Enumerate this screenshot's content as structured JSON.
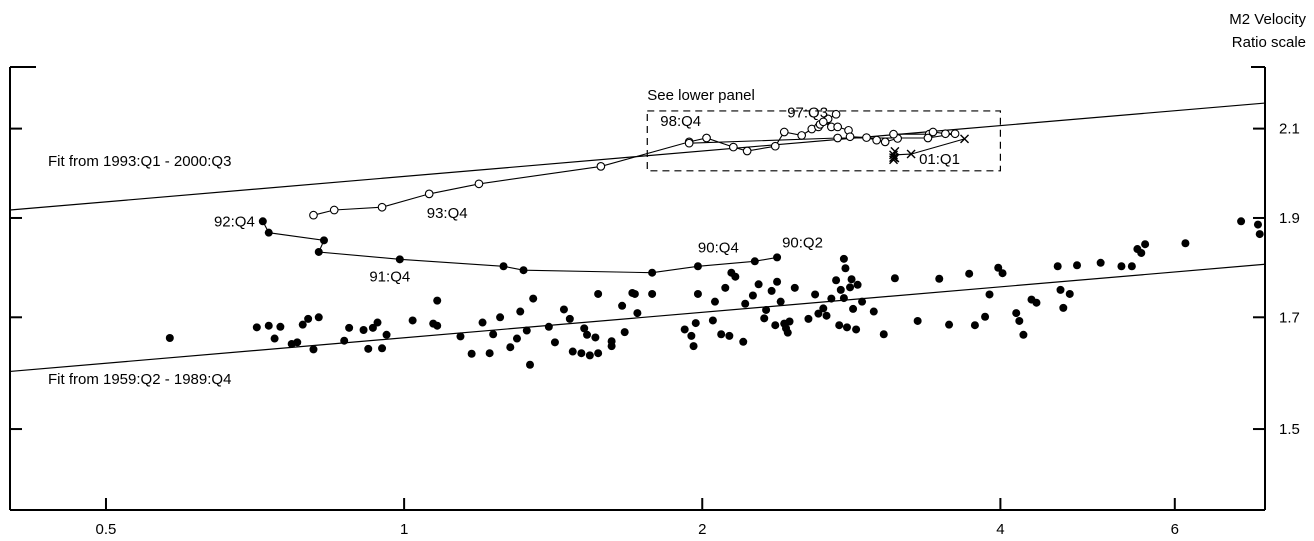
{
  "chart_data": {
    "type": "scatter",
    "title": "",
    "xlabel": "",
    "ylabel": "M2 Velocity",
    "ylabel_sub": "Ratio scale",
    "x_scale": "log",
    "y_scale": "log",
    "xlim": [
      0.4,
      7.4
    ],
    "ylim": [
      1.37,
      2.25
    ],
    "x_ticks": [
      0.5,
      1,
      2,
      4,
      6
    ],
    "x_tick_labels": [
      "0.5",
      "1",
      "2",
      "4",
      "6"
    ],
    "y_ticks": [
      1.5,
      1.7,
      1.9,
      2.1
    ],
    "y_tick_labels": [
      "1.5",
      "1.7",
      "1.9",
      "2.1"
    ],
    "grid": false,
    "legend": "none",
    "series": [
      {
        "marker": "filled-circle",
        "points": [
          [
            0.58,
            1.661
          ],
          [
            0.71,
            1.681
          ],
          [
            0.73,
            1.684
          ],
          [
            0.74,
            1.66
          ],
          [
            0.75,
            1.682
          ],
          [
            0.77,
            1.65
          ],
          [
            0.78,
            1.653
          ],
          [
            0.79,
            1.686
          ],
          [
            0.8,
            1.697
          ],
          [
            0.81,
            1.64
          ],
          [
            0.82,
            1.7
          ],
          [
            0.87,
            1.656
          ],
          [
            0.88,
            1.68
          ],
          [
            0.91,
            1.676
          ],
          [
            0.92,
            1.641
          ],
          [
            0.93,
            1.68
          ],
          [
            0.94,
            1.69
          ],
          [
            0.95,
            1.642
          ],
          [
            0.96,
            1.667
          ],
          [
            1.02,
            1.694
          ],
          [
            1.07,
            1.688
          ],
          [
            1.08,
            1.684
          ],
          [
            1.08,
            1.732
          ],
          [
            1.14,
            1.664
          ],
          [
            1.17,
            1.632
          ],
          [
            1.2,
            1.69
          ],
          [
            1.22,
            1.633
          ],
          [
            1.23,
            1.668
          ],
          [
            1.25,
            1.7
          ],
          [
            1.28,
            1.644
          ],
          [
            1.3,
            1.66
          ],
          [
            1.31,
            1.711
          ],
          [
            1.33,
            1.675
          ],
          [
            1.34,
            1.612
          ],
          [
            1.35,
            1.736
          ],
          [
            1.4,
            1.682
          ],
          [
            1.42,
            1.653
          ],
          [
            1.45,
            1.715
          ],
          [
            1.47,
            1.697
          ],
          [
            1.48,
            1.636
          ],
          [
            1.51,
            1.633
          ],
          [
            1.52,
            1.679
          ],
          [
            1.53,
            1.667
          ],
          [
            1.54,
            1.629
          ],
          [
            1.56,
            1.662
          ],
          [
            1.57,
            1.633
          ],
          [
            1.57,
            1.745
          ],
          [
            1.62,
            1.646
          ],
          [
            1.62,
            1.655
          ],
          [
            1.66,
            1.722
          ],
          [
            1.67,
            1.672
          ],
          [
            1.7,
            1.747
          ],
          [
            1.71,
            1.745
          ],
          [
            1.72,
            1.708
          ],
          [
            1.78,
            1.745
          ],
          [
            1.92,
            1.677
          ],
          [
            1.95,
            1.665
          ],
          [
            1.96,
            1.646
          ],
          [
            1.97,
            1.689
          ],
          [
            1.98,
            1.745
          ],
          [
            2.05,
            1.694
          ],
          [
            2.06,
            1.73
          ],
          [
            2.09,
            1.668
          ],
          [
            2.11,
            1.757
          ],
          [
            2.13,
            1.665
          ],
          [
            2.14,
            1.787
          ],
          [
            2.16,
            1.779
          ],
          [
            2.2,
            1.654
          ],
          [
            2.21,
            1.726
          ],
          [
            2.25,
            1.742
          ],
          [
            2.28,
            1.764
          ],
          [
            2.31,
            1.698
          ],
          [
            2.32,
            1.714
          ],
          [
            2.35,
            1.751
          ],
          [
            2.37,
            1.685
          ],
          [
            2.38,
            1.769
          ],
          [
            2.4,
            1.73
          ],
          [
            2.42,
            1.688
          ],
          [
            2.43,
            1.679
          ],
          [
            2.44,
            1.671
          ],
          [
            2.45,
            1.692
          ],
          [
            2.48,
            1.757
          ],
          [
            2.56,
            1.697
          ],
          [
            2.6,
            1.744
          ],
          [
            2.62,
            1.707
          ],
          [
            2.65,
            1.717
          ],
          [
            2.67,
            1.703
          ],
          [
            2.7,
            1.736
          ],
          [
            2.73,
            1.772
          ],
          [
            2.75,
            1.685
          ],
          [
            2.76,
            1.753
          ],
          [
            2.78,
            1.737
          ],
          [
            2.78,
            1.815
          ],
          [
            2.79,
            1.796
          ],
          [
            2.8,
            1.681
          ],
          [
            2.82,
            1.758
          ],
          [
            2.83,
            1.774
          ],
          [
            2.84,
            1.716
          ],
          [
            2.86,
            1.677
          ],
          [
            2.87,
            1.763
          ],
          [
            2.9,
            1.73
          ],
          [
            2.98,
            1.711
          ],
          [
            3.05,
            1.668
          ],
          [
            3.13,
            1.776
          ],
          [
            3.3,
            1.693
          ],
          [
            3.47,
            1.775
          ],
          [
            3.55,
            1.686
          ],
          [
            3.72,
            1.785
          ],
          [
            3.77,
            1.685
          ],
          [
            3.86,
            1.701
          ],
          [
            3.9,
            1.744
          ],
          [
            3.98,
            1.797
          ],
          [
            4.02,
            1.786
          ],
          [
            4.15,
            1.708
          ],
          [
            4.18,
            1.693
          ],
          [
            4.22,
            1.667
          ],
          [
            4.3,
            1.734
          ],
          [
            4.35,
            1.728
          ],
          [
            4.57,
            1.8
          ],
          [
            4.6,
            1.753
          ],
          [
            4.63,
            1.718
          ],
          [
            4.7,
            1.745
          ],
          [
            4.78,
            1.802
          ],
          [
            5.05,
            1.807
          ],
          [
            5.3,
            1.8
          ],
          [
            5.43,
            1.8
          ],
          [
            5.5,
            1.835
          ],
          [
            5.55,
            1.827
          ],
          [
            5.6,
            1.845
          ],
          [
            6.15,
            1.847
          ],
          [
            7.0,
            1.893
          ],
          [
            7.28,
            1.886
          ],
          [
            7.31,
            1.866
          ]
        ]
      },
      {
        "marker": "filled-circle",
        "line": true,
        "points": [
          [
            0.72,
            1.893
          ],
          [
            0.73,
            1.869
          ],
          [
            0.83,
            1.853
          ],
          [
            0.82,
            1.829
          ],
          [
            0.99,
            1.814
          ],
          [
            1.26,
            1.8
          ],
          [
            1.32,
            1.792
          ],
          [
            1.78,
            1.787
          ],
          [
            1.98,
            1.8
          ],
          [
            2.26,
            1.81
          ],
          [
            2.38,
            1.818
          ]
        ]
      },
      {
        "marker": "open-circle",
        "line": true,
        "points": [
          [
            0.81,
            1.906
          ],
          [
            0.85,
            1.917
          ],
          [
            0.95,
            1.923
          ],
          [
            1.06,
            1.952
          ],
          [
            1.19,
            1.974
          ],
          [
            1.58,
            2.013
          ],
          [
            1.94,
            2.069
          ],
          [
            2.02,
            2.078
          ],
          [
            2.15,
            2.057
          ],
          [
            2.22,
            2.048
          ],
          [
            2.37,
            2.059
          ],
          [
            2.42,
            2.092
          ],
          [
            2.52,
            2.084
          ],
          [
            2.58,
            2.099
          ],
          [
            2.62,
            2.104
          ],
          [
            2.63,
            2.11
          ],
          [
            2.67,
            2.12
          ],
          [
            2.68,
            2.123
          ],
          [
            2.73,
            2.134
          ],
          [
            2.65,
            2.116
          ],
          [
            2.7,
            2.104
          ],
          [
            2.74,
            2.104
          ],
          [
            2.81,
            2.096
          ],
          [
            2.82,
            2.081
          ],
          [
            2.93,
            2.079
          ],
          [
            3.0,
            2.073
          ],
          [
            3.06,
            2.069
          ],
          [
            3.15,
            2.077
          ],
          [
            3.12,
            2.087
          ],
          [
            3.39,
            2.087
          ],
          [
            3.42,
            2.092
          ],
          [
            3.52,
            2.088
          ],
          [
            3.6,
            2.088
          ],
          [
            3.38,
            2.078
          ],
          [
            2.74,
            2.078
          ],
          [
            1.94,
            2.066
          ]
        ]
      },
      {
        "marker": "x",
        "line": true,
        "points": [
          [
            3.68,
            2.076
          ],
          [
            3.25,
            2.041
          ],
          [
            3.12,
            2.039
          ],
          [
            3.12,
            2.028
          ],
          [
            3.13,
            2.047
          ],
          [
            3.12,
            2.033
          ],
          [
            3.13,
            2.032
          ]
        ]
      }
    ],
    "fit_lines": [
      {
        "label": "Fit from 1993:Q1 - 2000:Q3",
        "x": [
          0.4,
          7.4
        ],
        "y": [
          1.917,
          2.161
        ]
      },
      {
        "label": "Fit from 1959:Q2 - 1989:Q4",
        "x": [
          0.4,
          7.4
        ],
        "y": [
          1.6,
          1.804
        ]
      }
    ],
    "annotations": [
      {
        "text": "92:Q4",
        "x": 0.72,
        "y": 1.893,
        "anchor": "end",
        "dx": -8,
        "dy": 5
      },
      {
        "text": "91:Q4",
        "x": 0.99,
        "y": 1.814,
        "anchor": "middle",
        "dx": -10,
        "dy": 22
      },
      {
        "text": "93:Q4",
        "x": 1.06,
        "y": 1.952,
        "anchor": "middle",
        "dx": 18,
        "dy": 24
      },
      {
        "text": "90:Q4",
        "x": 1.98,
        "y": 1.8,
        "anchor": "start",
        "dx": 0,
        "dy": -14
      },
      {
        "text": "90:Q2",
        "x": 2.38,
        "y": 1.818,
        "anchor": "start",
        "dx": 5,
        "dy": -10
      },
      {
        "text": "98:Q4",
        "x": 1.94,
        "y": 2.069,
        "anchor": "end",
        "dx": 12,
        "dy": -16
      },
      {
        "text": "97:Q3",
        "x": 2.73,
        "y": 2.134,
        "anchor": "end",
        "dx": -8,
        "dy": 3
      },
      {
        "text": "01:Q1",
        "x": 3.25,
        "y": 2.041,
        "anchor": "start",
        "dx": 8,
        "dy": 10
      }
    ],
    "box": {
      "label": "See lower panel",
      "x": [
        1.76,
        4.0
      ],
      "y": [
        2.003,
        2.142
      ]
    }
  }
}
